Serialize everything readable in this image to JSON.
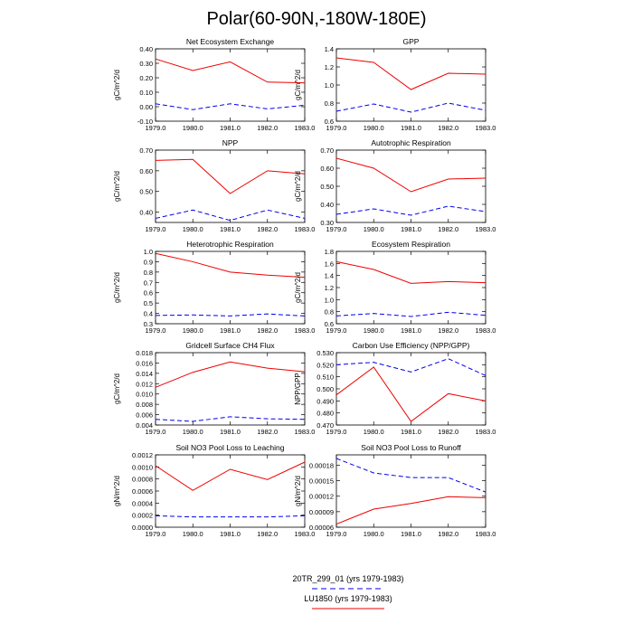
{
  "title": "Polar(60-90N,-180W-180E)",
  "colors": {
    "control": "#0000ee",
    "experiment": "#ee0000"
  },
  "legend": {
    "entries": [
      {
        "label": "20TR_299_01 (yrs 1979-1983)",
        "color": "#0000ee",
        "style": "dashed"
      },
      {
        "label": "LU1850 (yrs 1979-1983)",
        "color": "#ee0000",
        "style": "solid"
      }
    ]
  },
  "chart_data": [
    {
      "type": "line",
      "title": "Net Ecosystem Exchange",
      "ylabel": "gC/m^2/d",
      "xlabel": "",
      "x": [
        1979,
        1980,
        1981,
        1982,
        1983
      ],
      "xlim": [
        1979,
        1983
      ],
      "xticks": [
        "1979.0",
        "1980.0",
        "1981.0",
        "1982.0",
        "1983.0"
      ],
      "ylim": [
        -0.1,
        0.4
      ],
      "yticks": [
        -0.1,
        0.0,
        0.1,
        0.2,
        0.3,
        0.4
      ],
      "ytick_labels": [
        "-0.10",
        "0.00",
        "0.10",
        "0.20",
        "0.30",
        "0.40"
      ],
      "series": [
        {
          "name": "20TR_299_01 (yrs 1979-1983)",
          "values": [
            0.02,
            -0.02,
            0.02,
            -0.015,
            0.01
          ]
        },
        {
          "name": "LU1850 (yrs 1979-1983)",
          "values": [
            0.33,
            0.25,
            0.31,
            0.17,
            0.165
          ]
        }
      ]
    },
    {
      "type": "line",
      "title": "GPP",
      "ylabel": "gC/m^2/d",
      "xlabel": "",
      "x": [
        1979,
        1980,
        1981,
        1982,
        1983
      ],
      "xlim": [
        1979,
        1983
      ],
      "xticks": [
        "1979.0",
        "1980.0",
        "1981.0",
        "1982.0",
        "1983.0"
      ],
      "ylim": [
        0.6,
        1.4
      ],
      "yticks": [
        0.6,
        0.8,
        1.0,
        1.2,
        1.4
      ],
      "ytick_labels": [
        "0.6",
        "0.8",
        "1.0",
        "1.2",
        "1.4"
      ],
      "series": [
        {
          "name": "20TR_299_01 (yrs 1979-1983)",
          "values": [
            0.71,
            0.79,
            0.7,
            0.8,
            0.72
          ]
        },
        {
          "name": "LU1850 (yrs 1979-1983)",
          "values": [
            1.3,
            1.25,
            0.95,
            1.13,
            1.12
          ]
        }
      ]
    },
    {
      "type": "line",
      "title": "NPP",
      "ylabel": "gC/m^2/d",
      "xlabel": "",
      "x": [
        1979,
        1980,
        1981,
        1982,
        1983
      ],
      "xlim": [
        1979,
        1983
      ],
      "xticks": [
        "1979.0",
        "1980.0",
        "1981.0",
        "1982.0",
        "1983.0"
      ],
      "ylim": [
        0.35,
        0.7
      ],
      "yticks": [
        0.4,
        0.5,
        0.6,
        0.7
      ],
      "ytick_labels": [
        "0.40",
        "0.50",
        "0.60",
        "0.70"
      ],
      "series": [
        {
          "name": "20TR_299_01 (yrs 1979-1983)",
          "values": [
            0.37,
            0.41,
            0.36,
            0.41,
            0.37
          ]
        },
        {
          "name": "LU1850 (yrs 1979-1983)",
          "values": [
            0.65,
            0.655,
            0.49,
            0.6,
            0.585
          ]
        }
      ]
    },
    {
      "type": "line",
      "title": "Autotrophic Respiration",
      "ylabel": "gC/m^2/d",
      "xlabel": "",
      "x": [
        1979,
        1980,
        1981,
        1982,
        1983
      ],
      "xlim": [
        1979,
        1983
      ],
      "xticks": [
        "1979.0",
        "1980.0",
        "1981.0",
        "1982.0",
        "1983.0"
      ],
      "ylim": [
        0.3,
        0.7
      ],
      "yticks": [
        0.3,
        0.4,
        0.5,
        0.6,
        0.7
      ],
      "ytick_labels": [
        "0.30",
        "0.40",
        "0.50",
        "0.60",
        "0.70"
      ],
      "series": [
        {
          "name": "20TR_299_01 (yrs 1979-1983)",
          "values": [
            0.345,
            0.375,
            0.34,
            0.39,
            0.36
          ]
        },
        {
          "name": "LU1850 (yrs 1979-1983)",
          "values": [
            0.655,
            0.6,
            0.47,
            0.54,
            0.545
          ]
        }
      ]
    },
    {
      "type": "line",
      "title": "Heterotrophic Respiration",
      "ylabel": "gC/m^2/d",
      "xlabel": "",
      "x": [
        1979,
        1980,
        1981,
        1982,
        1983
      ],
      "xlim": [
        1979,
        1983
      ],
      "xticks": [
        "1979.0",
        "1980.0",
        "1981.0",
        "1982.0",
        "1983.0"
      ],
      "ylim": [
        0.3,
        1.0
      ],
      "yticks": [
        0.3,
        0.4,
        0.5,
        0.6,
        0.7,
        0.8,
        0.9,
        1.0
      ],
      "ytick_labels": [
        "0.3",
        "0.4",
        "0.5",
        "0.6",
        "0.7",
        "0.8",
        "0.9",
        "1.0"
      ],
      "series": [
        {
          "name": "20TR_299_01 (yrs 1979-1983)",
          "values": [
            0.38,
            0.385,
            0.375,
            0.395,
            0.375
          ]
        },
        {
          "name": "LU1850 (yrs 1979-1983)",
          "values": [
            0.98,
            0.9,
            0.8,
            0.77,
            0.75
          ]
        }
      ]
    },
    {
      "type": "line",
      "title": "Ecosystem Respiration",
      "ylabel": "gC/m^2/d",
      "xlabel": "",
      "x": [
        1979,
        1980,
        1981,
        1982,
        1983
      ],
      "xlim": [
        1979,
        1983
      ],
      "xticks": [
        "1979.0",
        "1980.0",
        "1981.0",
        "1982.0",
        "1983.0"
      ],
      "ylim": [
        0.6,
        1.8
      ],
      "yticks": [
        0.6,
        0.8,
        1.0,
        1.2,
        1.4,
        1.6,
        1.8
      ],
      "ytick_labels": [
        "0.6",
        "0.8",
        "1.0",
        "1.2",
        "1.4",
        "1.6",
        "1.8"
      ],
      "series": [
        {
          "name": "20TR_299_01 (yrs 1979-1983)",
          "values": [
            0.73,
            0.77,
            0.72,
            0.79,
            0.74
          ]
        },
        {
          "name": "LU1850 (yrs 1979-1983)",
          "values": [
            1.63,
            1.5,
            1.27,
            1.3,
            1.28
          ]
        }
      ]
    },
    {
      "type": "line",
      "title": "Gridcell Surface CH4 Flux",
      "ylabel": "gC/m^2/d",
      "xlabel": "",
      "x": [
        1979,
        1980,
        1981,
        1982,
        1983
      ],
      "xlim": [
        1979,
        1983
      ],
      "xticks": [
        "1979.0",
        "1980.0",
        "1981.0",
        "1982.0",
        "1983.0"
      ],
      "ylim": [
        0.004,
        0.018
      ],
      "yticks": [
        0.004,
        0.006,
        0.008,
        0.01,
        0.012,
        0.014,
        0.016,
        0.018
      ],
      "ytick_labels": [
        "0.004",
        "0.006",
        "0.008",
        "0.010",
        "0.012",
        "0.014",
        "0.016",
        "0.018"
      ],
      "series": [
        {
          "name": "20TR_299_01 (yrs 1979-1983)",
          "values": [
            0.0051,
            0.0047,
            0.0056,
            0.0052,
            0.0051
          ]
        },
        {
          "name": "LU1850 (yrs 1979-1983)",
          "values": [
            0.0113,
            0.0142,
            0.0162,
            0.015,
            0.0143
          ]
        }
      ]
    },
    {
      "type": "line",
      "title": "Carbon Use Efficiency (NPP/GPP)",
      "ylabel": "NPP/GPP",
      "xlabel": "",
      "x": [
        1979,
        1980,
        1981,
        1982,
        1983
      ],
      "xlim": [
        1979,
        1983
      ],
      "xticks": [
        "1979.0",
        "1980.0",
        "1981.0",
        "1982.0",
        "1983.0"
      ],
      "ylim": [
        0.47,
        0.53
      ],
      "yticks": [
        0.47,
        0.48,
        0.49,
        0.5,
        0.51,
        0.52,
        0.53
      ],
      "ytick_labels": [
        "0.470",
        "0.480",
        "0.490",
        "0.500",
        "0.510",
        "0.520",
        "0.530"
      ],
      "series": [
        {
          "name": "20TR_299_01 (yrs 1979-1983)",
          "values": [
            0.52,
            0.522,
            0.514,
            0.525,
            0.511
          ]
        },
        {
          "name": "LU1850 (yrs 1979-1983)",
          "values": [
            0.495,
            0.518,
            0.473,
            0.496,
            0.49
          ]
        }
      ]
    },
    {
      "type": "line",
      "title": "Soil NO3 Pool Loss to Leaching",
      "ylabel": "gN/m^2/d",
      "xlabel": "",
      "x": [
        1979,
        1980,
        1981,
        1982,
        1983
      ],
      "xlim": [
        1979,
        1983
      ],
      "xticks": [
        "1979.0",
        "1980.0",
        "1981.0",
        "1982.0",
        "1983.0"
      ],
      "ylim": [
        0.0,
        0.0012
      ],
      "yticks": [
        0.0,
        0.0002,
        0.0004,
        0.0006,
        0.0008,
        0.001,
        0.0012
      ],
      "ytick_labels": [
        "0.0000",
        "0.0002",
        "0.0004",
        "0.0006",
        "0.0008",
        "0.0010",
        "0.0012"
      ],
      "series": [
        {
          "name": "20TR_299_01 (yrs 1979-1983)",
          "values": [
            0.00019,
            0.00017,
            0.00017,
            0.00017,
            0.00019
          ]
        },
        {
          "name": "LU1850 (yrs 1979-1983)",
          "values": [
            0.00102,
            0.00061,
            0.00096,
            0.00079,
            0.00108
          ]
        }
      ]
    },
    {
      "type": "line",
      "title": "Soil NO3 Pool Loss to Runoff",
      "ylabel": "gN/m^2/d",
      "xlabel": "",
      "x": [
        1979,
        1980,
        1981,
        1982,
        1983
      ],
      "xlim": [
        1979,
        1983
      ],
      "xticks": [
        "1979.0",
        "1980.0",
        "1981.0",
        "1982.0",
        "1983.0"
      ],
      "ylim": [
        6e-05,
        0.0002
      ],
      "yticks": [
        6e-05,
        9e-05,
        0.00012,
        0.00015,
        0.00018
      ],
      "ytick_labels": [
        "0.00006",
        "0.00009",
        "0.00012",
        "0.00015",
        "0.00018"
      ],
      "series": [
        {
          "name": "20TR_299_01 (yrs 1979-1983)",
          "values": [
            0.000193,
            0.000165,
            0.000156,
            0.000156,
            0.000128
          ]
        },
        {
          "name": "LU1850 (yrs 1979-1983)",
          "values": [
            6.6e-05,
            9.5e-05,
            0.000106,
            0.000119,
            0.000117
          ]
        }
      ]
    }
  ]
}
